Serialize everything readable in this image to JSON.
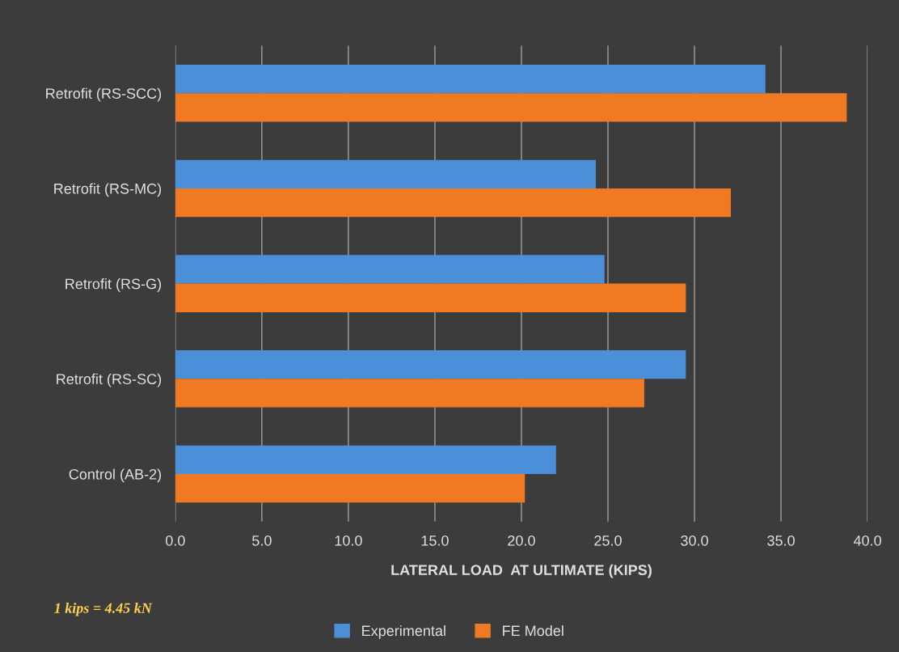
{
  "chart_data": {
    "type": "bar",
    "orientation": "horizontal",
    "xlabel": "LATERAL LOAD  AT ULTIMATE (KIPS)",
    "categories": [
      "Retrofit (RS-SCC)",
      "Retrofit (RS-MC)",
      "Retrofit (RS-G)",
      "Retrofit (RS-SC)",
      "Control (AB-2)"
    ],
    "series": [
      {
        "name": "Experimental",
        "color": "#4a8fd8",
        "values": [
          34.1,
          24.3,
          24.8,
          29.5,
          22.0
        ]
      },
      {
        "name": "FE Model",
        "color": "#f07a22",
        "values": [
          38.8,
          32.1,
          29.5,
          27.1,
          20.2
        ]
      }
    ],
    "xlim": [
      0,
      40
    ],
    "xticks": [
      {
        "value": 0,
        "label": "0.0"
      },
      {
        "value": 5,
        "label": "5.0"
      },
      {
        "value": 10,
        "label": "10.0"
      },
      {
        "value": 15,
        "label": "15.0"
      },
      {
        "value": 20,
        "label": "20.0"
      },
      {
        "value": 25,
        "label": "25.0"
      },
      {
        "value": 30,
        "label": "30.0"
      },
      {
        "value": 35,
        "label": "35.0"
      },
      {
        "value": 40,
        "label": "40.0"
      }
    ],
    "grid": "x",
    "legend": "bottom",
    "annotations": [
      "1 kips = 4.45 kN"
    ]
  }
}
